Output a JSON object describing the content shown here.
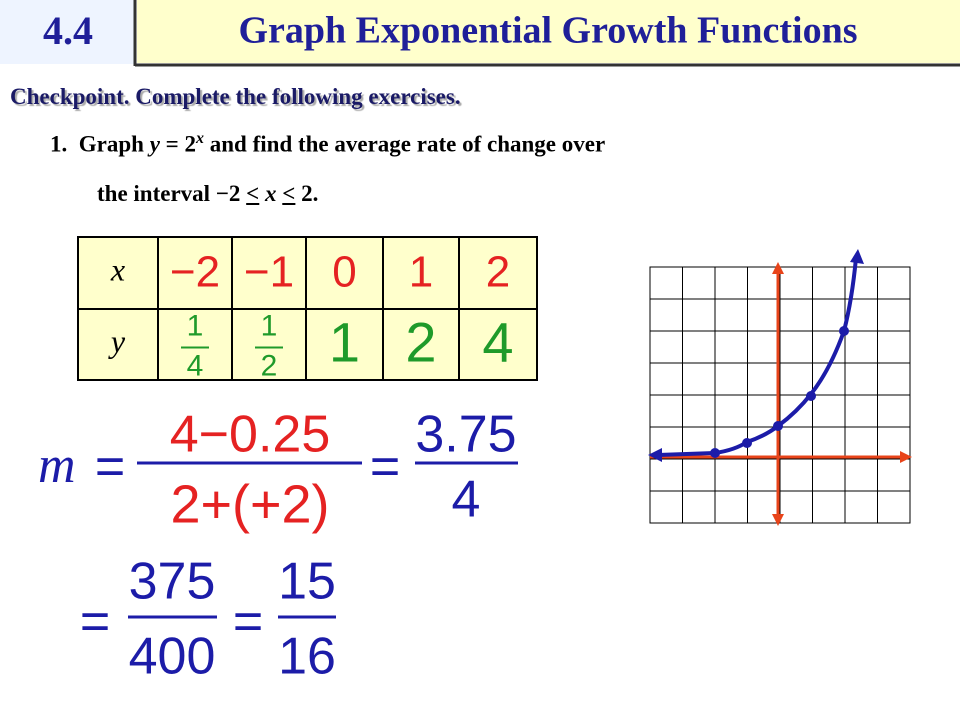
{
  "header": {
    "number": "4.4",
    "title": "Graph Exponential Growth Functions"
  },
  "checkpoint": "Checkpoint. Complete the following exercises.",
  "exercise": {
    "number": "1.",
    "line1": {
      "before": "Graph ",
      "var": "y",
      "mid": " = 2",
      "exponent": "x",
      "after": " and find the average rate of change over"
    },
    "line2": {
      "before": "the interval −2 ",
      "lt1": "<",
      "var": " x ",
      "lt2": "<",
      "after": " 2."
    }
  },
  "table": {
    "rows": [
      {
        "label": "x",
        "cells": [
          "−2",
          "−1",
          "0",
          "1",
          "2"
        ]
      },
      {
        "label": "y",
        "cells": [
          {
            "num": "1",
            "den": "4"
          },
          {
            "num": "1",
            "den": "2"
          },
          "1",
          "2",
          "4"
        ]
      }
    ]
  },
  "work": {
    "line1": {
      "m": "m",
      "eq1": "=",
      "frac1": {
        "num": "4−0.25",
        "den": "2+(+2)"
      },
      "eq2": "=",
      "frac2": {
        "num": "3.75",
        "den": "4"
      }
    },
    "line2": {
      "eq1": "=",
      "frac1": {
        "num": "375",
        "den": "400"
      },
      "eq2": "=",
      "frac2": {
        "num": "15",
        "den": "16"
      }
    }
  }
}
